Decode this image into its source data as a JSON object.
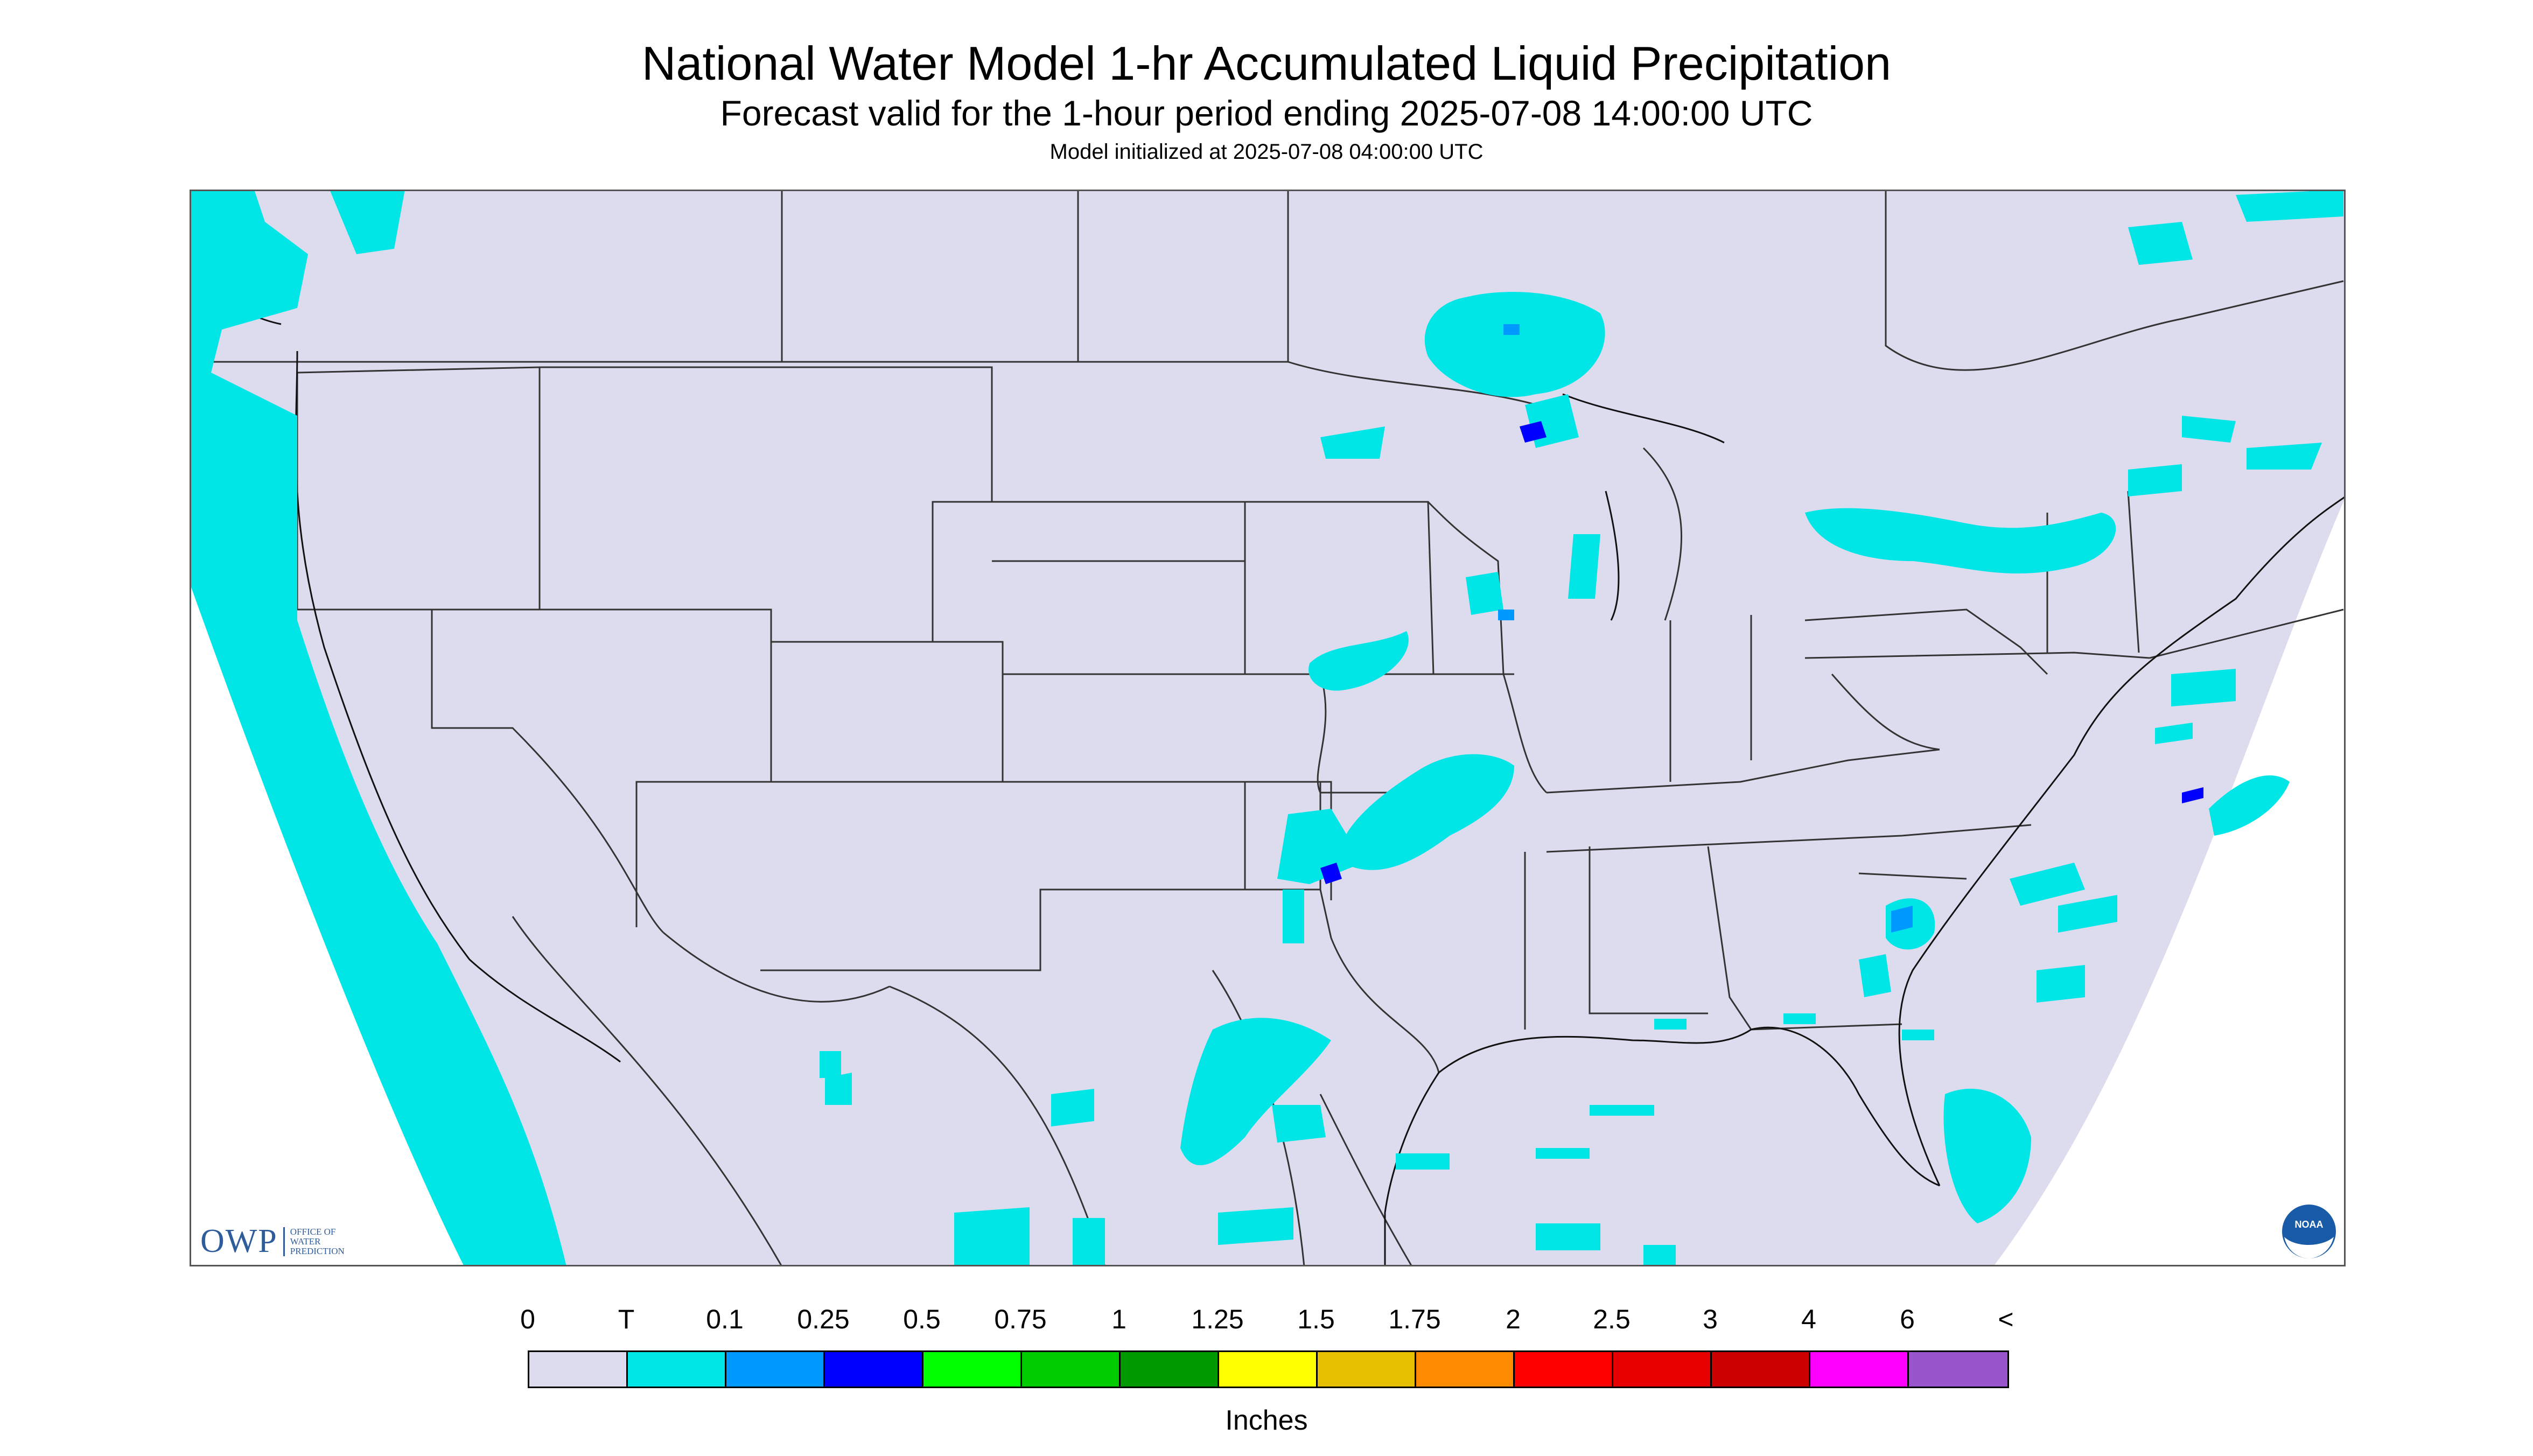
{
  "header": {
    "title": "National Water Model 1-hr Accumulated Liquid Precipitation",
    "subtitle": "Forecast valid for the 1-hour period ending 2025-07-08 14:00:00 UTC",
    "init": "Model initialized at 2025-07-08 04:00:00 UTC"
  },
  "map": {
    "background_color": "#dcdcee",
    "outside_color": "#ffffff",
    "precip_trace_color": "#00e6e6",
    "precip_0p1_color": "#0099ff",
    "precip_0p25_color": "#0000ff",
    "boundary_color": "#333333"
  },
  "logos": {
    "owp_mark": "OWP",
    "owp_line1": "OFFICE OF",
    "owp_line2": "WATER",
    "owp_line3": "PREDICTION",
    "noaa": "NOAA"
  },
  "legend": {
    "labels": [
      "0",
      "T",
      "0.1",
      "0.25",
      "0.5",
      "0.75",
      "1",
      "1.25",
      "1.5",
      "1.75",
      "2",
      "2.5",
      "3",
      "4",
      "6",
      "<"
    ],
    "colors": [
      "#dcdcee",
      "#00e6e6",
      "#0099ff",
      "#0000ff",
      "#00ff00",
      "#00cc00",
      "#009900",
      "#ffff00",
      "#e6c000",
      "#ff8c00",
      "#ff0000",
      "#e60000",
      "#cc0000",
      "#ff00ff",
      "#9955cc"
    ],
    "units": "Inches"
  }
}
